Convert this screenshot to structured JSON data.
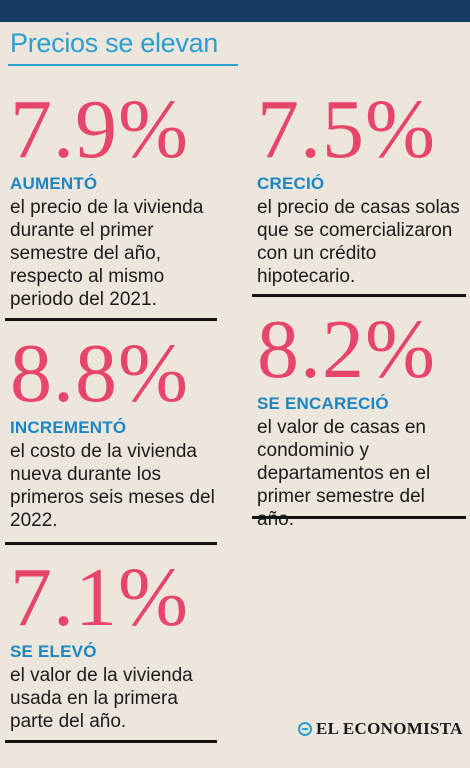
{
  "title": "Precios se elevan",
  "stats": [
    {
      "value": "7.9%",
      "label": "AUMENTÓ",
      "desc": "el precio de la vivienda durante el primer semestre del año, respecto al mismo periodo del 2021."
    },
    {
      "value": "7.5%",
      "label": "CRECIÓ",
      "desc": "el precio de casas solas que se comercializaron con un crédito hipotecario."
    },
    {
      "value": "8.8%",
      "label": "INCREMENTÓ",
      "desc": "el costo de la vivienda nueva durante los primeros seis meses del 2022."
    },
    {
      "value": "8.2%",
      "label": "SE ENCARECIÓ",
      "desc": "el valor de casas en condominio y departamentos en el primer semestre del año."
    },
    {
      "value": "7.1%",
      "label": "SE ELEVÓ",
      "desc": "el valor de la vivienda usada en la primera parte del año."
    }
  ],
  "brand": "EL ECONOMISTA",
  "colors": {
    "accent_red": "#e8456b",
    "accent_blue": "#1d86c2",
    "header": "#163a63",
    "background": "#ede6dc"
  }
}
